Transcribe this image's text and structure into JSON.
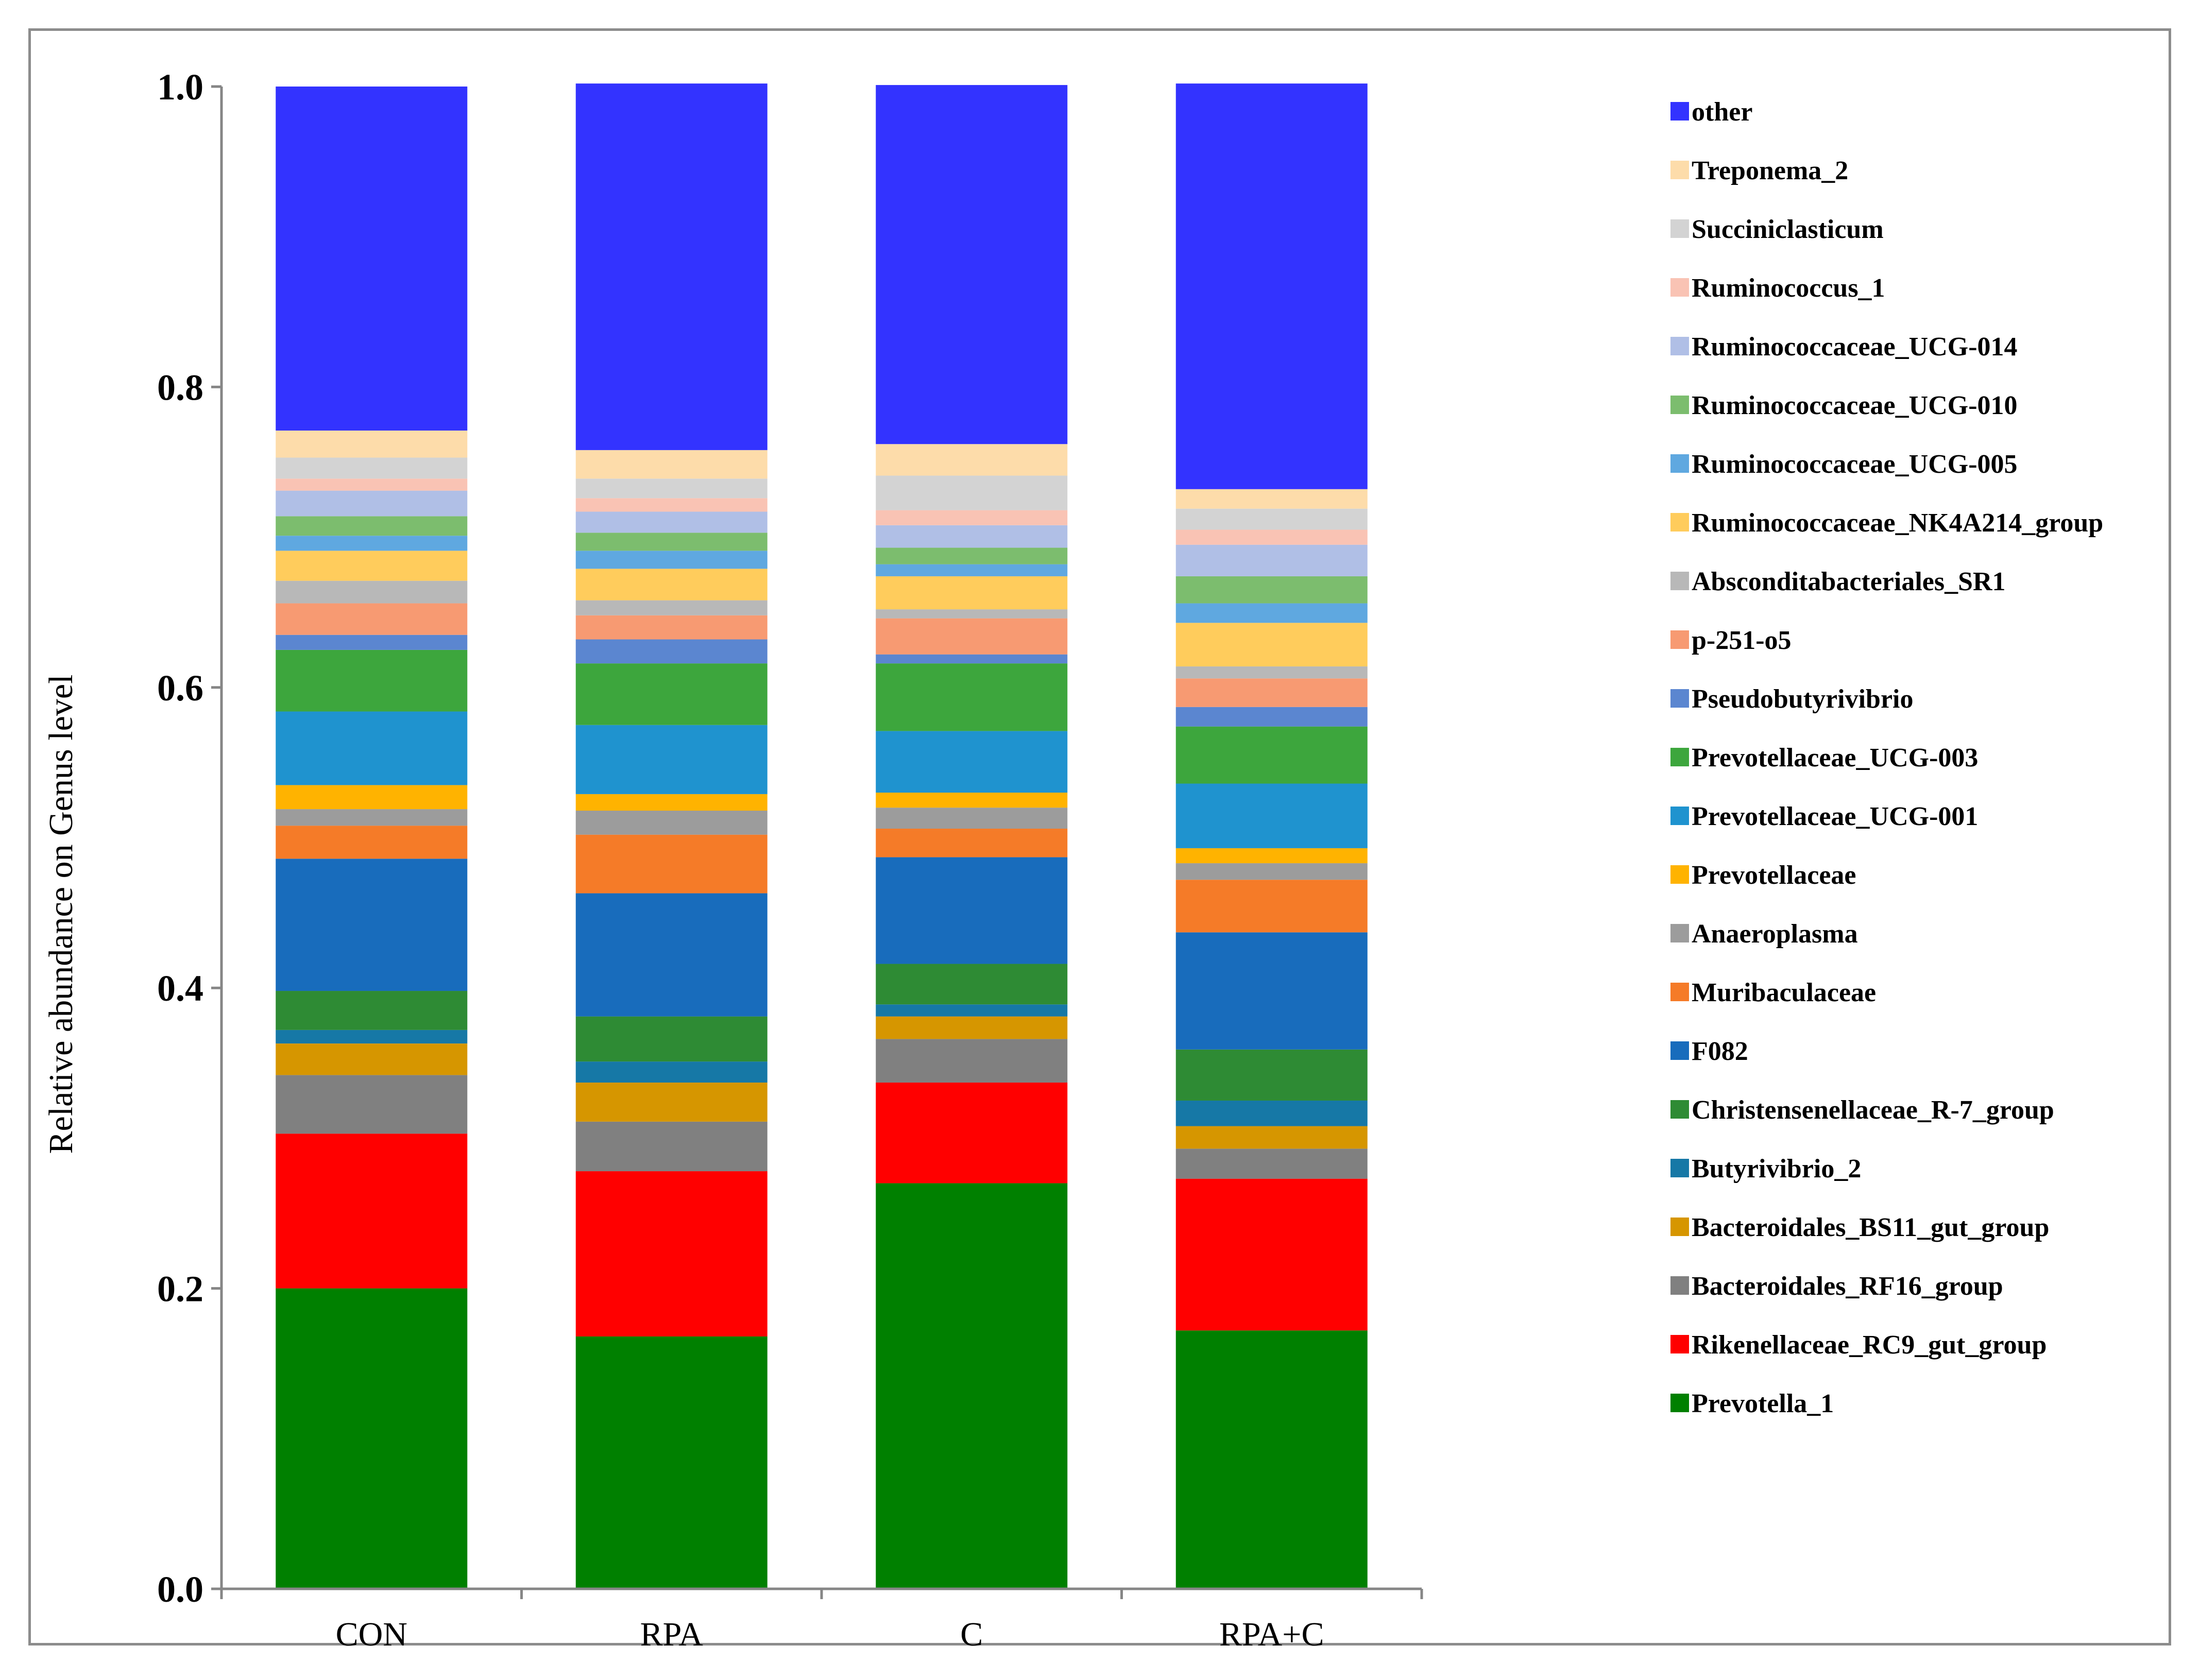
{
  "chart_data": {
    "type": "bar",
    "stacked": true,
    "title": "",
    "xlabel": "",
    "ylabel": "Relative abundance on Genus level",
    "ylim": [
      0,
      1.0
    ],
    "yticks": [
      "0.0",
      "0.2",
      "0.4",
      "0.6",
      "0.8",
      "1.0"
    ],
    "grid": false,
    "legend_position": "right",
    "categories": [
      "CON",
      "RPA",
      "C",
      "RPA+C"
    ],
    "series": [
      {
        "name": "Prevotella_1",
        "color": "#008000",
        "values": [
          0.2,
          0.168,
          0.27,
          0.172
        ]
      },
      {
        "name": "Rikenellaceae_RC9_gut_group",
        "color": "#ff0000",
        "values": [
          0.103,
          0.11,
          0.067,
          0.101
        ]
      },
      {
        "name": "Bacteroidales_RF16_group",
        "color": "#808080",
        "values": [
          0.039,
          0.033,
          0.029,
          0.02
        ]
      },
      {
        "name": "Bacteroidales_BS11_gut_group",
        "color": "#d69600",
        "values": [
          0.021,
          0.026,
          0.015,
          0.015
        ]
      },
      {
        "name": "Butyrivibrio_2",
        "color": "#1678a6",
        "values": [
          0.009,
          0.014,
          0.008,
          0.017
        ]
      },
      {
        "name": "Christensenellaceae_R-7_group",
        "color": "#2e8b34",
        "values": [
          0.026,
          0.03,
          0.027,
          0.034
        ]
      },
      {
        "name": "F082",
        "color": "#186cbc",
        "values": [
          0.088,
          0.082,
          0.071,
          0.078
        ]
      },
      {
        "name": "Muribaculaceae",
        "color": "#f57b28",
        "values": [
          0.022,
          0.039,
          0.019,
          0.035
        ]
      },
      {
        "name": "Anaeroplasma",
        "color": "#9c9c9c",
        "values": [
          0.011,
          0.016,
          0.014,
          0.011
        ]
      },
      {
        "name": "Prevotellaceae",
        "color": "#ffb300",
        "values": [
          0.016,
          0.011,
          0.01,
          0.01
        ]
      },
      {
        "name": "Prevotellaceae_UCG-001",
        "color": "#1f93cf",
        "values": [
          0.049,
          0.046,
          0.041,
          0.043
        ]
      },
      {
        "name": "Prevotellaceae_UCG-003",
        "color": "#3da63d",
        "values": [
          0.041,
          0.041,
          0.045,
          0.038
        ]
      },
      {
        "name": "Pseudobutyrivibrio",
        "color": "#5b86d0",
        "values": [
          0.01,
          0.016,
          0.006,
          0.013
        ]
      },
      {
        "name": "p-251-o5",
        "color": "#f79a72",
        "values": [
          0.021,
          0.016,
          0.024,
          0.019
        ]
      },
      {
        "name": "Absconditabacteriales_SR1",
        "color": "#b8b8b8",
        "values": [
          0.015,
          0.01,
          0.006,
          0.008
        ]
      },
      {
        "name": "Ruminococcaceae_NK4A214_group",
        "color": "#ffcc5c",
        "values": [
          0.02,
          0.021,
          0.022,
          0.029
        ]
      },
      {
        "name": "Ruminococcaceae_UCG-005",
        "color": "#5fa8e0",
        "values": [
          0.01,
          0.012,
          0.008,
          0.013
        ]
      },
      {
        "name": "Ruminococcaceae_UCG-010",
        "color": "#7cbd6e",
        "values": [
          0.013,
          0.012,
          0.011,
          0.018
        ]
      },
      {
        "name": "Ruminococcaceae_UCG-014",
        "color": "#b0bfe6",
        "values": [
          0.017,
          0.014,
          0.015,
          0.021
        ]
      },
      {
        "name": "Ruminococcus_1",
        "color": "#f9c3b4",
        "values": [
          0.008,
          0.009,
          0.01,
          0.01
        ]
      },
      {
        "name": "Succiniclasticum",
        "color": "#d3d3d3",
        "values": [
          0.014,
          0.013,
          0.023,
          0.014
        ]
      },
      {
        "name": "Treponema_2",
        "color": "#fddcaa",
        "values": [
          0.018,
          0.019,
          0.021,
          0.013
        ]
      },
      {
        "name": "other",
        "color": "#3333ff",
        "values": [
          0.229,
          0.244,
          0.239,
          0.27
        ]
      }
    ]
  }
}
